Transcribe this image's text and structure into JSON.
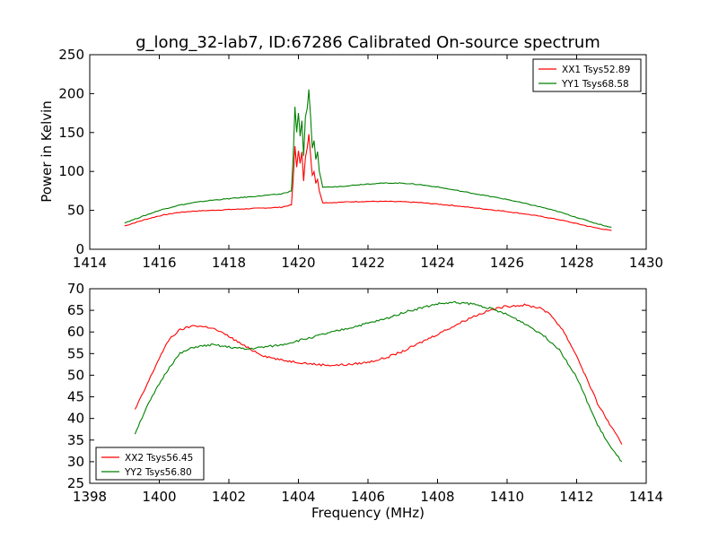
{
  "chart_data": [
    {
      "type": "line",
      "title": "g_long_32-lab7, ID:67286 Calibrated On-source spectrum",
      "xlabel": "",
      "ylabel": "Power in Kelvin",
      "xlim": [
        1414,
        1430
      ],
      "ylim": [
        0,
        250
      ],
      "xticks": [
        "1414",
        "1416",
        "1418",
        "1420",
        "1422",
        "1424",
        "1426",
        "1428",
        "1430"
      ],
      "yticks": [
        "0",
        "50",
        "100",
        "150",
        "200",
        "250"
      ],
      "legend_position": "top-right",
      "series": [
        {
          "name": "XX1 Tsys52.89",
          "color": "#ff0000",
          "x": [
            1415,
            1415.5,
            1416,
            1416.5,
            1417,
            1417.5,
            1418,
            1418.5,
            1419,
            1419.5,
            1419.8,
            1419.85,
            1419.9,
            1419.95,
            1420.0,
            1420.05,
            1420.1,
            1420.15,
            1420.2,
            1420.25,
            1420.3,
            1420.35,
            1420.4,
            1420.45,
            1420.5,
            1420.55,
            1420.6,
            1420.7,
            1421,
            1421.5,
            1422,
            1422.5,
            1423,
            1423.5,
            1424,
            1424.5,
            1425,
            1425.5,
            1426,
            1426.5,
            1427,
            1427.5,
            1428,
            1428.5,
            1429
          ],
          "values": [
            30,
            37,
            43,
            47,
            49,
            50,
            51,
            52,
            53,
            54,
            57,
            90,
            133,
            105,
            127,
            110,
            125,
            88,
            118,
            130,
            148,
            120,
            95,
            100,
            85,
            90,
            75,
            60,
            60,
            61,
            61.5,
            61.5,
            61,
            60,
            58,
            56,
            53.5,
            51,
            48.5,
            45.5,
            42,
            38,
            33,
            28,
            24
          ]
        },
        {
          "name": "YY1 Tsys68.58",
          "color": "#008000",
          "x": [
            1415,
            1415.5,
            1416,
            1416.5,
            1417,
            1417.5,
            1418,
            1418.5,
            1419,
            1419.5,
            1419.8,
            1419.85,
            1419.9,
            1419.95,
            1420.0,
            1420.05,
            1420.1,
            1420.15,
            1420.2,
            1420.25,
            1420.3,
            1420.35,
            1420.4,
            1420.45,
            1420.5,
            1420.55,
            1420.6,
            1420.7,
            1421,
            1421.5,
            1422,
            1422.5,
            1423,
            1423.5,
            1424,
            1424.5,
            1425,
            1425.5,
            1426,
            1426.5,
            1427,
            1427.5,
            1428,
            1428.5,
            1429
          ],
          "values": [
            34,
            42,
            50,
            56,
            60,
            63,
            65,
            67,
            69,
            71,
            75,
            120,
            183,
            150,
            175,
            145,
            165,
            120,
            170,
            180,
            205,
            170,
            130,
            140,
            115,
            125,
            100,
            80,
            80,
            82,
            84,
            85,
            85,
            83,
            80,
            76,
            72,
            68,
            64,
            59,
            54,
            48,
            41,
            34,
            28
          ]
        }
      ]
    },
    {
      "type": "line",
      "title": "",
      "xlabel": "Frequency (MHz)",
      "ylabel": "",
      "xlim": [
        1398,
        1414
      ],
      "ylim": [
        25,
        70
      ],
      "xticks": [
        "1398",
        "1400",
        "1402",
        "1404",
        "1406",
        "1408",
        "1410",
        "1412",
        "1414"
      ],
      "yticks": [
        "25",
        "30",
        "35",
        "40",
        "45",
        "50",
        "55",
        "60",
        "65",
        "70"
      ],
      "legend_position": "bottom-left",
      "series": [
        {
          "name": "XX2 Tsys56.45",
          "color": "#ff0000",
          "x": [
            1399.3,
            1399.6,
            1400,
            1400.3,
            1400.6,
            1401,
            1401.5,
            1402,
            1402.5,
            1403,
            1403.5,
            1404,
            1404.5,
            1405,
            1405.5,
            1406,
            1406.5,
            1407,
            1407.5,
            1408,
            1408.5,
            1409,
            1409.5,
            1410,
            1410.5,
            1411,
            1411.3,
            1411.6,
            1412,
            1412.3,
            1412.6,
            1413,
            1413.3
          ],
          "values": [
            42,
            47,
            54,
            58.5,
            60.5,
            61.5,
            61,
            59,
            56.5,
            54.5,
            53.5,
            53,
            52.5,
            52.3,
            52.5,
            53,
            54,
            55.5,
            57.5,
            59.5,
            61.5,
            63.5,
            65,
            66,
            66.2,
            65.5,
            63.5,
            60.5,
            54.5,
            49,
            43.5,
            38,
            34
          ]
        },
        {
          "name": "YY2 Tsys56.80",
          "color": "#008000",
          "x": [
            1399.3,
            1399.6,
            1400,
            1400.3,
            1400.6,
            1401,
            1401.5,
            1402,
            1402.5,
            1403,
            1403.5,
            1404,
            1404.5,
            1405,
            1405.5,
            1406,
            1406.5,
            1407,
            1407.5,
            1408,
            1408.5,
            1409,
            1409.5,
            1410,
            1410.5,
            1411,
            1411.5,
            1412,
            1412.3,
            1412.6,
            1413,
            1413.3
          ],
          "values": [
            36.5,
            42,
            48,
            52,
            55,
            56.5,
            57,
            56.5,
            56,
            56.5,
            57,
            58,
            59,
            60,
            61,
            62,
            63,
            64.5,
            65.5,
            66.5,
            66.8,
            66.5,
            65.5,
            64,
            62,
            59.5,
            56,
            49.5,
            44,
            38.5,
            33,
            30
          ]
        }
      ]
    }
  ]
}
